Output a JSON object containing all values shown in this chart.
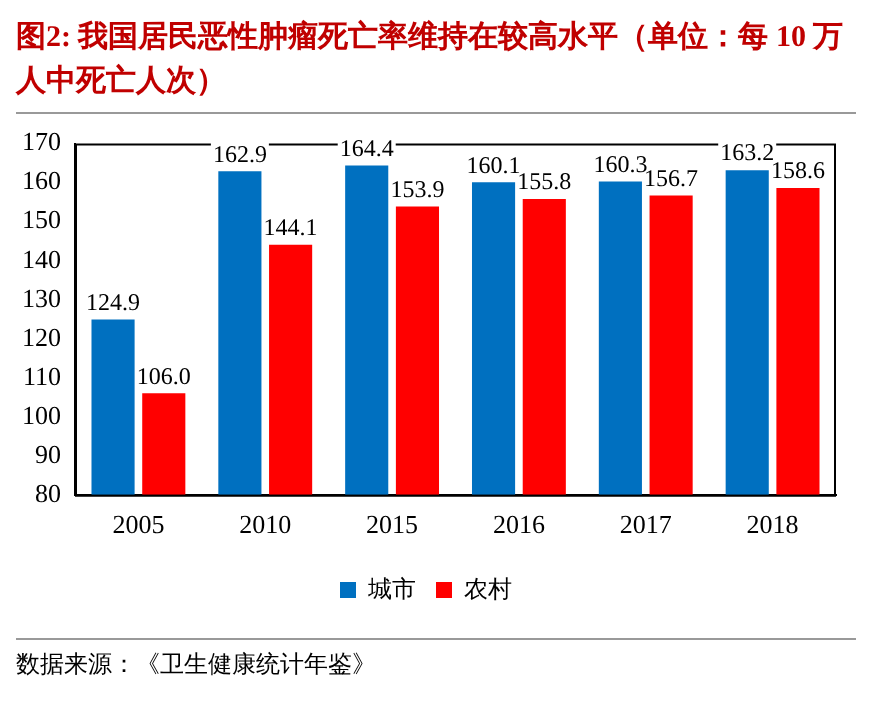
{
  "chart_data": {
    "type": "bar",
    "title": "图2:  我国居民恶性肿瘤死亡率维持在较高水平（单位：每 10 万人中死亡人次）",
    "categories": [
      "2005",
      "2010",
      "2015",
      "2016",
      "2017",
      "2018"
    ],
    "series": [
      {
        "name": "城市",
        "color": "#0070c0",
        "values": [
          124.9,
          162.9,
          164.4,
          160.1,
          160.3,
          163.2
        ],
        "value_labels": [
          "124.9",
          "162.9",
          "164.4",
          "160.1",
          "160.3",
          "163.2"
        ]
      },
      {
        "name": "农村",
        "color": "#ff0000",
        "values": [
          106.0,
          144.1,
          153.9,
          155.8,
          156.7,
          158.6
        ],
        "value_labels": [
          "106.0",
          "144.1",
          "153.9",
          "155.8",
          "156.7",
          "158.6"
        ]
      }
    ],
    "ylim": [
      80,
      170
    ],
    "yticks": [
      80,
      90,
      100,
      110,
      120,
      130,
      140,
      150,
      160,
      170
    ],
    "grid": false,
    "legend": "bottom",
    "annotations": [
      "数据来源：《卫生健康统计年鉴》"
    ]
  }
}
